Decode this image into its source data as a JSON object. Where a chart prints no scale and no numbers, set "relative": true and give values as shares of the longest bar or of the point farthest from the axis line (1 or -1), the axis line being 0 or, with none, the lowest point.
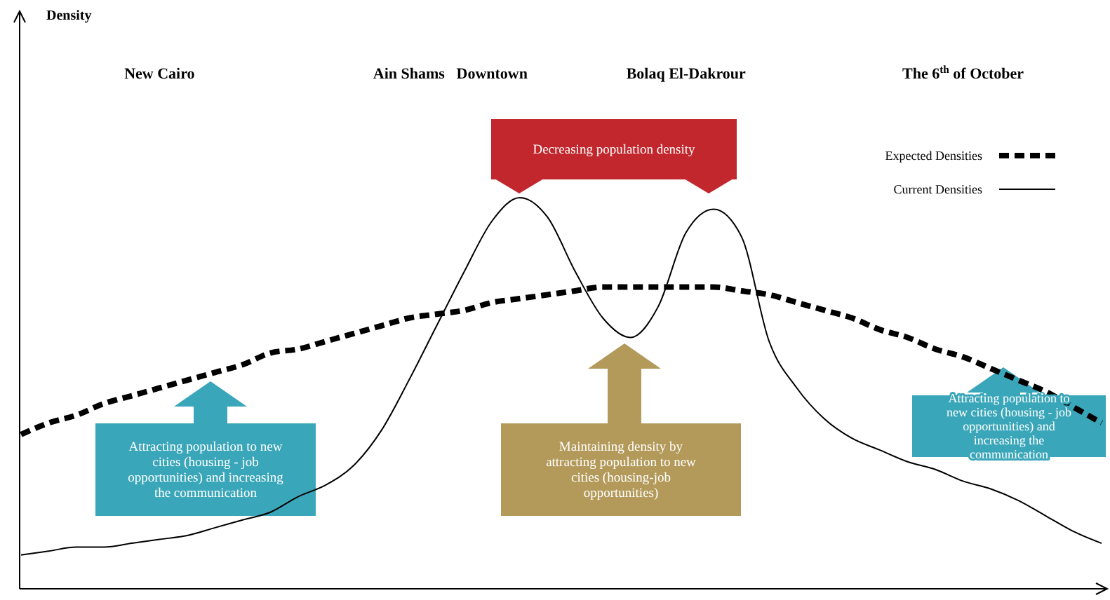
{
  "chart_data": {
    "type": "line",
    "relative": true,
    "ylabel": "Density",
    "categories": [
      null,
      null,
      null,
      null,
      null,
      "New Cairo",
      null,
      null,
      null,
      null,
      null,
      null,
      null,
      null,
      "Ain Shams",
      null,
      null,
      "Downtown",
      null,
      null,
      null,
      null,
      null,
      null,
      "Bolaq El-Dakrour",
      null,
      null,
      null,
      null,
      null,
      null,
      null,
      null,
      null,
      "The 6$^{th}$ of October",
      null,
      null,
      null,
      null,
      null
    ],
    "series": [
      {
        "name": "Expected Densities",
        "color": "#000000",
        "line_style": "dashed",
        "values": [
          0.39,
          0.42,
          0.44,
          0.47,
          0.49,
          0.51,
          0.53,
          0.55,
          0.57,
          0.6,
          0.61,
          0.63,
          0.65,
          0.67,
          0.69,
          0.7,
          0.71,
          0.73,
          0.74,
          0.75,
          0.76,
          0.77,
          0.77,
          0.77,
          0.77,
          0.77,
          0.76,
          0.75,
          0.73,
          0.71,
          0.69,
          0.66,
          0.64,
          0.61,
          0.59,
          0.56,
          0.53,
          0.5,
          0.46,
          0.42
        ]
      },
      {
        "name": "Current Densities",
        "color": "#000000",
        "line_style": "solid",
        "values": [
          0.08,
          0.09,
          0.1,
          0.1,
          0.11,
          0.12,
          0.13,
          0.15,
          0.17,
          0.19,
          0.23,
          0.26,
          0.31,
          0.4,
          0.53,
          0.67,
          0.81,
          0.94,
          1,
          0.95,
          0.81,
          0.69,
          0.64,
          0.72,
          0.91,
          0.97,
          0.9,
          0.63,
          0.51,
          0.43,
          0.38,
          0.35,
          0.32,
          0.3,
          0.27,
          0.25,
          0.22,
          0.18,
          0.14,
          0.11
        ]
      }
    ],
    "legend": "top right",
    "annotations": [
      "Decreasing population density",
      "Maintaining density by attracting population to new cities (housing-job opportunities)",
      "Attracting population to new cities (housing - job opportunities) and increasing the communication",
      "Attracting population to new cities (housing - job opportunities) and increasing the communication"
    ]
  }
}
